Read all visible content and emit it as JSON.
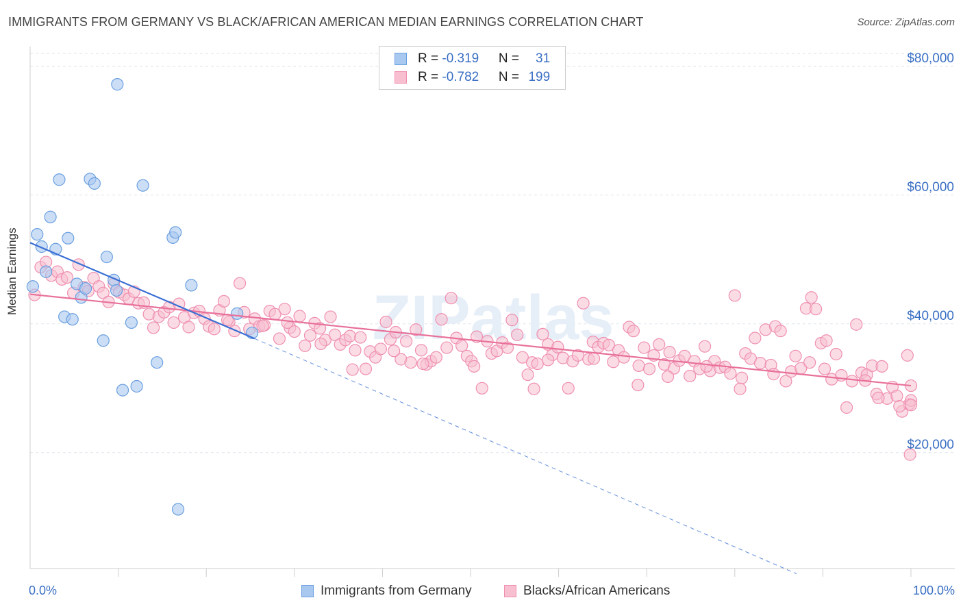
{
  "title": "IMMIGRANTS FROM GERMANY VS BLACK/AFRICAN AMERICAN MEDIAN EARNINGS CORRELATION CHART",
  "source": "Source: ZipAtlas.com",
  "watermark": "ZIPatlas",
  "legend": {
    "series1": {
      "r_label": "R = ",
      "r_value": "-0.319",
      "n_label": "N = ",
      "n_value": "31"
    },
    "series2": {
      "r_label": "R = ",
      "r_value": "-0.782",
      "n_label": "N = ",
      "n_value": "199"
    }
  },
  "bottom_legend": {
    "series1": "Immigrants from Germany",
    "series2": "Blacks/African Americans"
  },
  "x_axis": {
    "min_label": "0.0%",
    "max_label": "100.0%"
  },
  "colors": {
    "blue_fill": "#a9c8f0",
    "blue_stroke": "#6a9fe0",
    "blue_line": "#3a6fd4",
    "pink_fill": "#f7bfd0",
    "pink_stroke": "#ef8fb0",
    "pink_line": "#e8709a",
    "tick_label": "#3a6fc4"
  },
  "chart_data": {
    "type": "scatter",
    "title": "IMMIGRANTS FROM GERMANY VS BLACK/AFRICAN AMERICAN MEDIAN EARNINGS CORRELATION CHART",
    "xlabel": "",
    "ylabel": "Median Earnings",
    "xlim": [
      0,
      100
    ],
    "ylim": [
      2000,
      82000
    ],
    "y_ticks": [
      20000,
      40000,
      60000,
      80000
    ],
    "y_tick_labels": [
      "$20,000",
      "$40,000",
      "$60,000",
      "$80,000"
    ],
    "grid": true,
    "series": [
      {
        "name": "Immigrants from Germany",
        "R": -0.319,
        "N": 31,
        "trend": {
          "x": [
            0,
            25.5
          ],
          "y": [
            52600,
            37700
          ]
        },
        "trend_extended": {
          "x": [
            25.5,
            87
          ],
          "y": [
            37700,
            1200
          ]
        },
        "points": [
          [
            0.3,
            45800
          ],
          [
            0.8,
            53900
          ],
          [
            1.3,
            52000
          ],
          [
            1.8,
            48100
          ],
          [
            2.3,
            56600
          ],
          [
            2.9,
            51600
          ],
          [
            3.3,
            62400
          ],
          [
            3.9,
            41100
          ],
          [
            4.3,
            53300
          ],
          [
            4.8,
            40700
          ],
          [
            5.3,
            46200
          ],
          [
            5.8,
            44100
          ],
          [
            6.3,
            45500
          ],
          [
            6.8,
            62500
          ],
          [
            7.3,
            61800
          ],
          [
            8.3,
            37400
          ],
          [
            8.7,
            50400
          ],
          [
            9.5,
            46800
          ],
          [
            9.8,
            45200
          ],
          [
            9.9,
            77200
          ],
          [
            10.5,
            29700
          ],
          [
            11.5,
            40200
          ],
          [
            12.1,
            30300
          ],
          [
            12.8,
            61500
          ],
          [
            14.4,
            34000
          ],
          [
            16.2,
            53400
          ],
          [
            16.5,
            54200
          ],
          [
            16.8,
            11200
          ],
          [
            18.3,
            46000
          ],
          [
            23.5,
            41600
          ],
          [
            25.2,
            38600
          ]
        ]
      },
      {
        "name": "Blacks/African Americans",
        "R": -0.782,
        "N": 199,
        "trend": {
          "x": [
            0,
            100
          ],
          "y": [
            44600,
            30400
          ]
        },
        "points": [
          [
            0.5,
            44500
          ],
          [
            1.2,
            48800
          ],
          [
            1.8,
            49600
          ],
          [
            2.4,
            47500
          ],
          [
            3.1,
            48100
          ],
          [
            3.6,
            46900
          ],
          [
            4.2,
            47200
          ],
          [
            4.9,
            44800
          ],
          [
            5.5,
            49200
          ],
          [
            6.1,
            45700
          ],
          [
            6.6,
            45100
          ],
          [
            7.2,
            47100
          ],
          [
            7.8,
            45800
          ],
          [
            8.3,
            44800
          ],
          [
            8.9,
            43400
          ],
          [
            9.5,
            46200
          ],
          [
            10.1,
            44900
          ],
          [
            10.7,
            44500
          ],
          [
            11.2,
            43900
          ],
          [
            11.8,
            45000
          ],
          [
            12.3,
            43200
          ],
          [
            12.9,
            43300
          ],
          [
            13.5,
            41500
          ],
          [
            14.0,
            39400
          ],
          [
            14.6,
            41100
          ],
          [
            15.2,
            41800
          ],
          [
            15.8,
            42600
          ],
          [
            16.3,
            40200
          ],
          [
            16.9,
            43100
          ],
          [
            17.5,
            41000
          ],
          [
            18.0,
            39500
          ],
          [
            18.6,
            41700
          ],
          [
            19.2,
            42000
          ],
          [
            19.8,
            40800
          ],
          [
            20.3,
            39600
          ],
          [
            20.9,
            39200
          ],
          [
            21.5,
            42100
          ],
          [
            22.0,
            43500
          ],
          [
            22.6,
            40300
          ],
          [
            23.2,
            38900
          ],
          [
            23.8,
            46300
          ],
          [
            24.3,
            41800
          ],
          [
            24.9,
            39200
          ],
          [
            25.5,
            40800
          ],
          [
            26.0,
            39600
          ],
          [
            26.6,
            39800
          ],
          [
            27.2,
            42000
          ],
          [
            27.8,
            41500
          ],
          [
            28.3,
            37700
          ],
          [
            28.9,
            42300
          ],
          [
            29.5,
            39400
          ],
          [
            30.0,
            38800
          ],
          [
            30.6,
            41200
          ],
          [
            31.2,
            36600
          ],
          [
            31.8,
            38200
          ],
          [
            32.3,
            40100
          ],
          [
            32.9,
            39300
          ],
          [
            33.5,
            37500
          ],
          [
            34.1,
            41100
          ],
          [
            34.6,
            38300
          ],
          [
            35.2,
            36800
          ],
          [
            35.8,
            37500
          ],
          [
            36.3,
            38100
          ],
          [
            36.9,
            35900
          ],
          [
            37.5,
            37900
          ],
          [
            38.1,
            33000
          ],
          [
            38.6,
            35700
          ],
          [
            39.2,
            34800
          ],
          [
            39.8,
            36100
          ],
          [
            40.4,
            40300
          ],
          [
            40.9,
            37600
          ],
          [
            41.5,
            38700
          ],
          [
            42.1,
            34500
          ],
          [
            42.7,
            37300
          ],
          [
            43.2,
            34000
          ],
          [
            43.8,
            39100
          ],
          [
            44.4,
            35900
          ],
          [
            45.0,
            33700
          ],
          [
            45.5,
            34200
          ],
          [
            46.1,
            34800
          ],
          [
            46.7,
            40700
          ],
          [
            47.3,
            36300
          ],
          [
            47.8,
            44000
          ],
          [
            48.4,
            37800
          ],
          [
            49.0,
            36600
          ],
          [
            49.6,
            35000
          ],
          [
            50.1,
            34200
          ],
          [
            50.7,
            38000
          ],
          [
            51.3,
            30000
          ],
          [
            51.9,
            37300
          ],
          [
            52.4,
            35400
          ],
          [
            53.0,
            35800
          ],
          [
            53.6,
            37100
          ],
          [
            54.2,
            36300
          ],
          [
            54.7,
            40600
          ],
          [
            55.3,
            38300
          ],
          [
            55.9,
            34800
          ],
          [
            56.5,
            32100
          ],
          [
            57.0,
            34000
          ],
          [
            57.6,
            33800
          ],
          [
            58.2,
            38400
          ],
          [
            58.8,
            36800
          ],
          [
            59.3,
            35200
          ],
          [
            59.9,
            36400
          ],
          [
            60.5,
            34700
          ],
          [
            61.1,
            30000
          ],
          [
            61.6,
            34200
          ],
          [
            62.2,
            35100
          ],
          [
            62.8,
            43200
          ],
          [
            63.4,
            34500
          ],
          [
            63.9,
            37200
          ],
          [
            64.5,
            36400
          ],
          [
            65.1,
            37000
          ],
          [
            65.7,
            36700
          ],
          [
            66.2,
            34100
          ],
          [
            66.8,
            35900
          ],
          [
            67.4,
            34800
          ],
          [
            68.0,
            39500
          ],
          [
            68.5,
            38900
          ],
          [
            69.1,
            33500
          ],
          [
            69.7,
            36300
          ],
          [
            70.3,
            33000
          ],
          [
            70.8,
            35100
          ],
          [
            71.4,
            36800
          ],
          [
            72.0,
            33700
          ],
          [
            72.6,
            35600
          ],
          [
            73.1,
            33100
          ],
          [
            73.7,
            34300
          ],
          [
            74.3,
            35000
          ],
          [
            74.9,
            31900
          ],
          [
            75.4,
            34200
          ],
          [
            76.0,
            33000
          ],
          [
            76.6,
            36500
          ],
          [
            77.2,
            32700
          ],
          [
            77.7,
            34200
          ],
          [
            78.3,
            33200
          ],
          [
            78.9,
            33300
          ],
          [
            79.5,
            32300
          ],
          [
            80.0,
            44400
          ],
          [
            80.6,
            29900
          ],
          [
            81.2,
            35400
          ],
          [
            81.8,
            34600
          ],
          [
            82.3,
            37800
          ],
          [
            82.9,
            33900
          ],
          [
            83.5,
            39100
          ],
          [
            84.1,
            33600
          ],
          [
            84.6,
            39600
          ],
          [
            85.2,
            38900
          ],
          [
            85.8,
            31100
          ],
          [
            86.4,
            32600
          ],
          [
            86.9,
            35000
          ],
          [
            87.5,
            33100
          ],
          [
            88.1,
            42400
          ],
          [
            88.7,
            44100
          ],
          [
            89.2,
            42300
          ],
          [
            89.8,
            37000
          ],
          [
            90.4,
            37400
          ],
          [
            91.0,
            31400
          ],
          [
            91.5,
            35300
          ],
          [
            92.1,
            32000
          ],
          [
            92.7,
            27000
          ],
          [
            93.3,
            31100
          ],
          [
            93.8,
            39900
          ],
          [
            94.4,
            32400
          ],
          [
            95.0,
            32100
          ],
          [
            95.6,
            33500
          ],
          [
            96.1,
            29100
          ],
          [
            96.7,
            33400
          ],
          [
            97.3,
            28400
          ],
          [
            97.9,
            30200
          ],
          [
            98.4,
            28800
          ],
          [
            99.0,
            26400
          ],
          [
            99.6,
            35100
          ],
          [
            99.8,
            27500
          ],
          [
            99.9,
            19700
          ],
          [
            100.0,
            28100
          ],
          [
            100.0,
            27400
          ],
          [
            100.0,
            30400
          ],
          [
            88.5,
            34000
          ],
          [
            69.0,
            30500
          ],
          [
            57.2,
            29900
          ],
          [
            64.0,
            34600
          ],
          [
            72.4,
            31800
          ],
          [
            76.8,
            33400
          ],
          [
            80.8,
            31600
          ],
          [
            84.4,
            32200
          ],
          [
            90.2,
            33000
          ],
          [
            94.8,
            31200
          ],
          [
            96.3,
            28500
          ],
          [
            98.7,
            27200
          ],
          [
            58.8,
            34400
          ],
          [
            50.4,
            33400
          ],
          [
            44.6,
            33800
          ],
          [
            41.3,
            35800
          ],
          [
            36.6,
            32900
          ],
          [
            33.0,
            36900
          ],
          [
            29.2,
            40200
          ],
          [
            26.4,
            39700
          ],
          [
            22.4,
            40600
          ]
        ]
      }
    ]
  }
}
